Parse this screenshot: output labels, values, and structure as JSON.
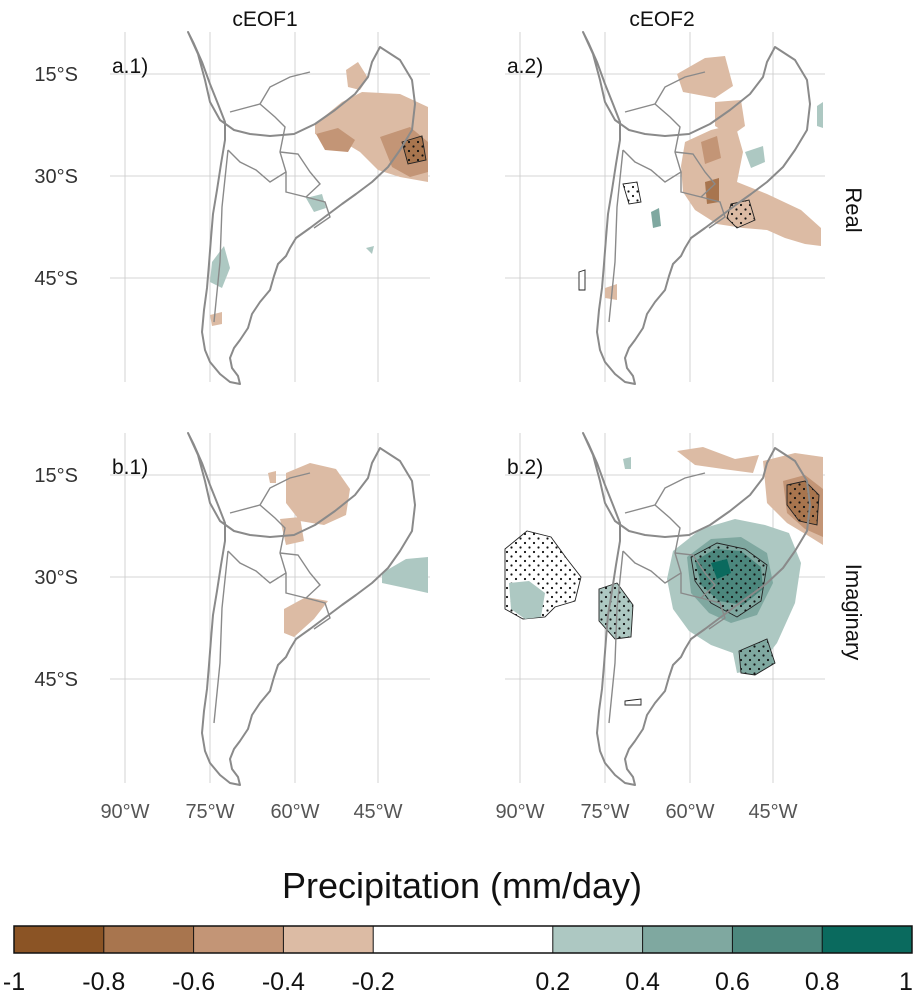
{
  "columns": [
    "cEOF1",
    "cEOF2"
  ],
  "rows": [
    "Real",
    "Imaginary"
  ],
  "panels": [
    {
      "label": "a.1)"
    },
    {
      "label": "a.2)"
    },
    {
      "label": "b.1)"
    },
    {
      "label": "b.2)"
    }
  ],
  "lat_labels": [
    "15°S",
    "30°S",
    "45°S"
  ],
  "lon_labels": [
    "90°W",
    "75°W",
    "60°W",
    "45°W"
  ],
  "colorbar": {
    "title": "Precipitation (mm/day)",
    "ticks": [
      "-1",
      "-0.8",
      "-0.6",
      "-0.4",
      "-0.2",
      "0.2",
      "0.4",
      "0.6",
      "0.8",
      "1"
    ],
    "colors": [
      "#8b5425",
      "#a8754e",
      "#c39576",
      "#dcbba4",
      "#ffffff",
      "#ffffff",
      "#adc8c2",
      "#7fa8a0",
      "#4c877d",
      "#0a6a5e"
    ]
  }
}
